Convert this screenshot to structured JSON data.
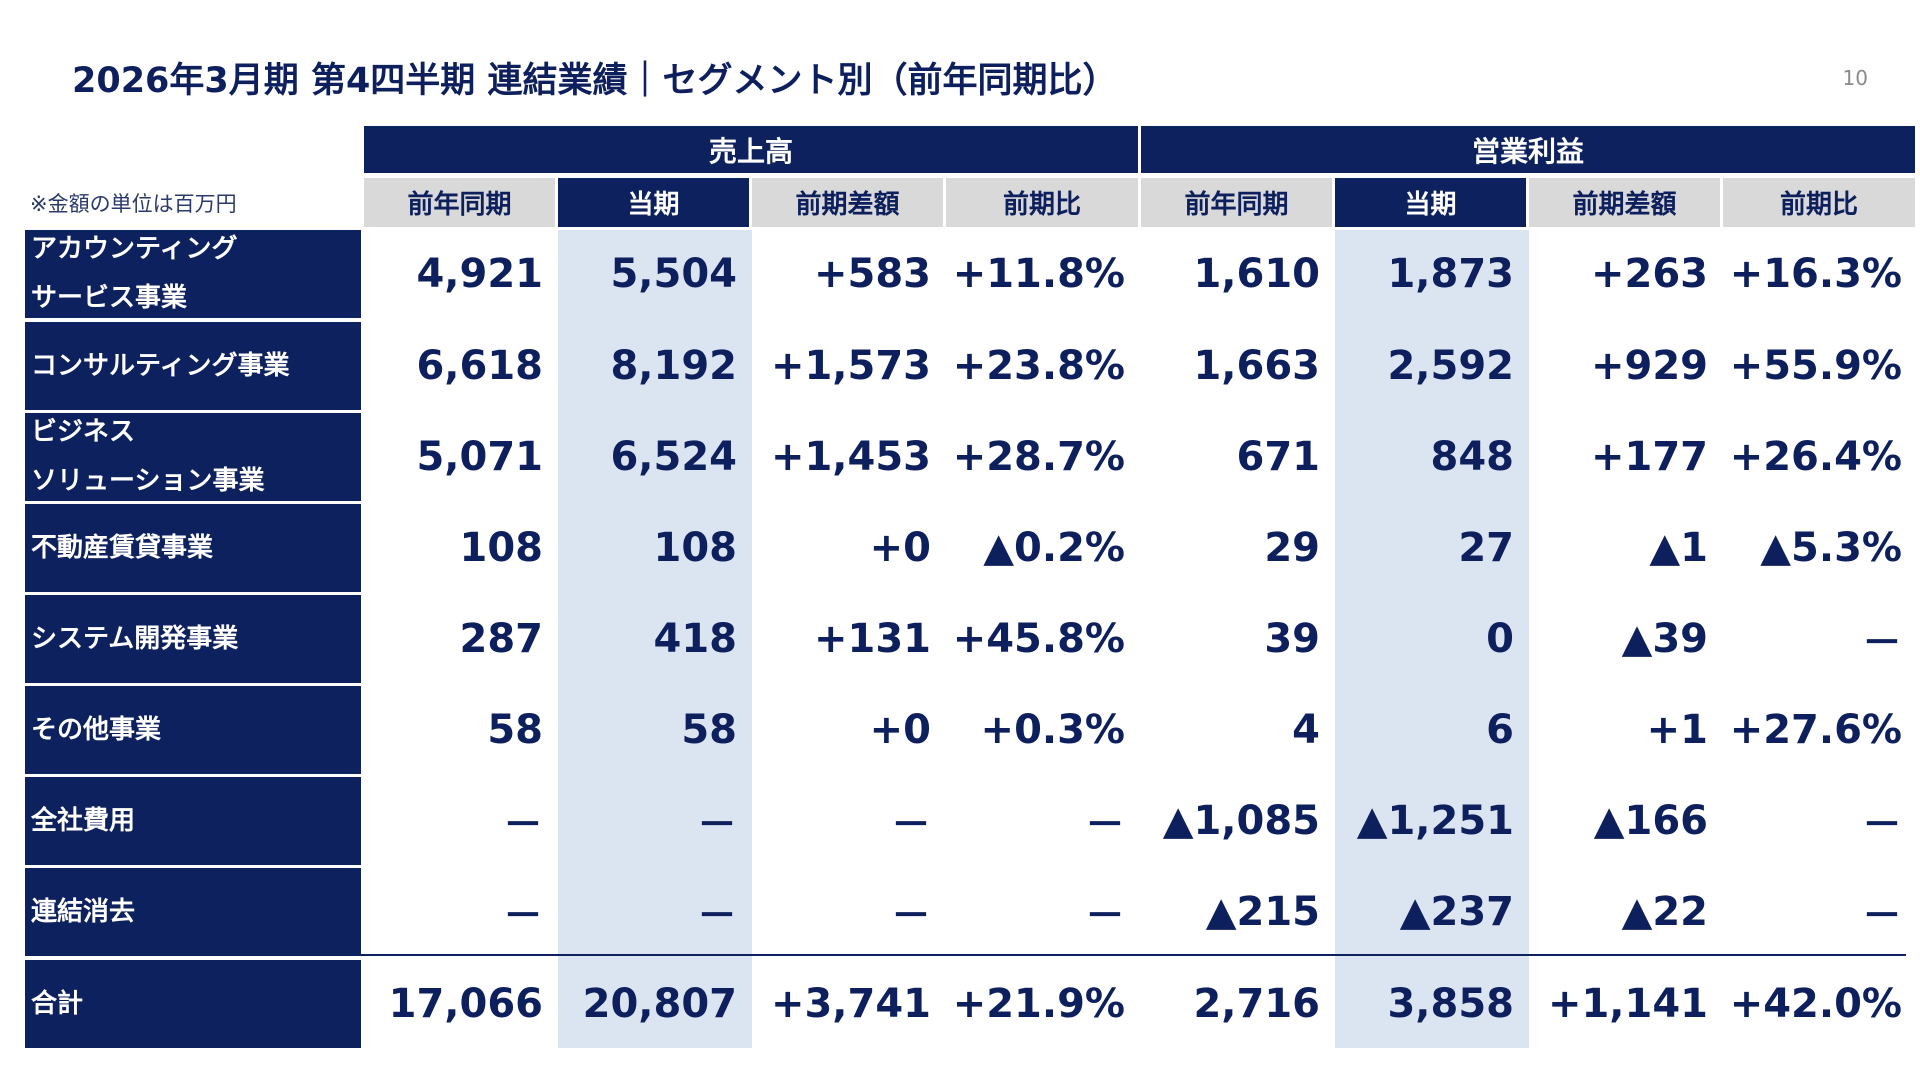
{
  "title": "2026年3月期 第4四半期 連結業績｜セグメント別（前年同期比）",
  "page_number": "10",
  "unit_note": "※金額の単位は百万円",
  "groups": [
    "売上高",
    "営業利益"
  ],
  "column_headers": [
    "前年同期",
    "当期",
    "前期差額",
    "前期比",
    "前年同期",
    "当期",
    "前期差額",
    "前期比"
  ],
  "rows": [
    {
      "label_lines": [
        "アカウンティング",
        "サービス事業"
      ],
      "values": [
        "4,921",
        "5,504",
        "+583",
        "+11.8%",
        "1,610",
        "1,873",
        "+263",
        "+16.3%"
      ]
    },
    {
      "label_lines": [
        "コンサルティング事業"
      ],
      "values": [
        "6,618",
        "8,192",
        "+1,573",
        "+23.8%",
        "1,663",
        "2,592",
        "+929",
        "+55.9%"
      ]
    },
    {
      "label_lines": [
        "ビジネス",
        "ソリューション事業"
      ],
      "values": [
        "5,071",
        "6,524",
        "+1,453",
        "+28.7%",
        "671",
        "848",
        "+177",
        "+26.4%"
      ]
    },
    {
      "label_lines": [
        "不動産賃貸事業"
      ],
      "values": [
        "108",
        "108",
        "+0",
        "▲0.2%",
        "29",
        "27",
        "▲1",
        "▲5.3%"
      ]
    },
    {
      "label_lines": [
        "システム開発事業"
      ],
      "values": [
        "287",
        "418",
        "+131",
        "+45.8%",
        "39",
        "0",
        "▲39",
        "－"
      ]
    },
    {
      "label_lines": [
        "その他事業"
      ],
      "values": [
        "58",
        "58",
        "+0",
        "+0.3%",
        "4",
        "6",
        "+1",
        "+27.6%"
      ]
    },
    {
      "label_lines": [
        "全社費用"
      ],
      "values": [
        "－",
        "－",
        "－",
        "－",
        "▲1,085",
        "▲1,251",
        "▲166",
        "－"
      ]
    },
    {
      "label_lines": [
        "連結消去"
      ],
      "values": [
        "－",
        "－",
        "－",
        "－",
        "▲215",
        "▲237",
        "▲22",
        "－"
      ]
    },
    {
      "label_lines": [
        "合計"
      ],
      "values": [
        "17,066",
        "20,807",
        "+3,741",
        "+21.9%",
        "2,716",
        "3,858",
        "+1,141",
        "+42.0%"
      ]
    }
  ],
  "colors": {
    "navy": "#0d215e",
    "current_column_bg": "#dbe5f1",
    "header_gray": "#d9d9d9"
  }
}
